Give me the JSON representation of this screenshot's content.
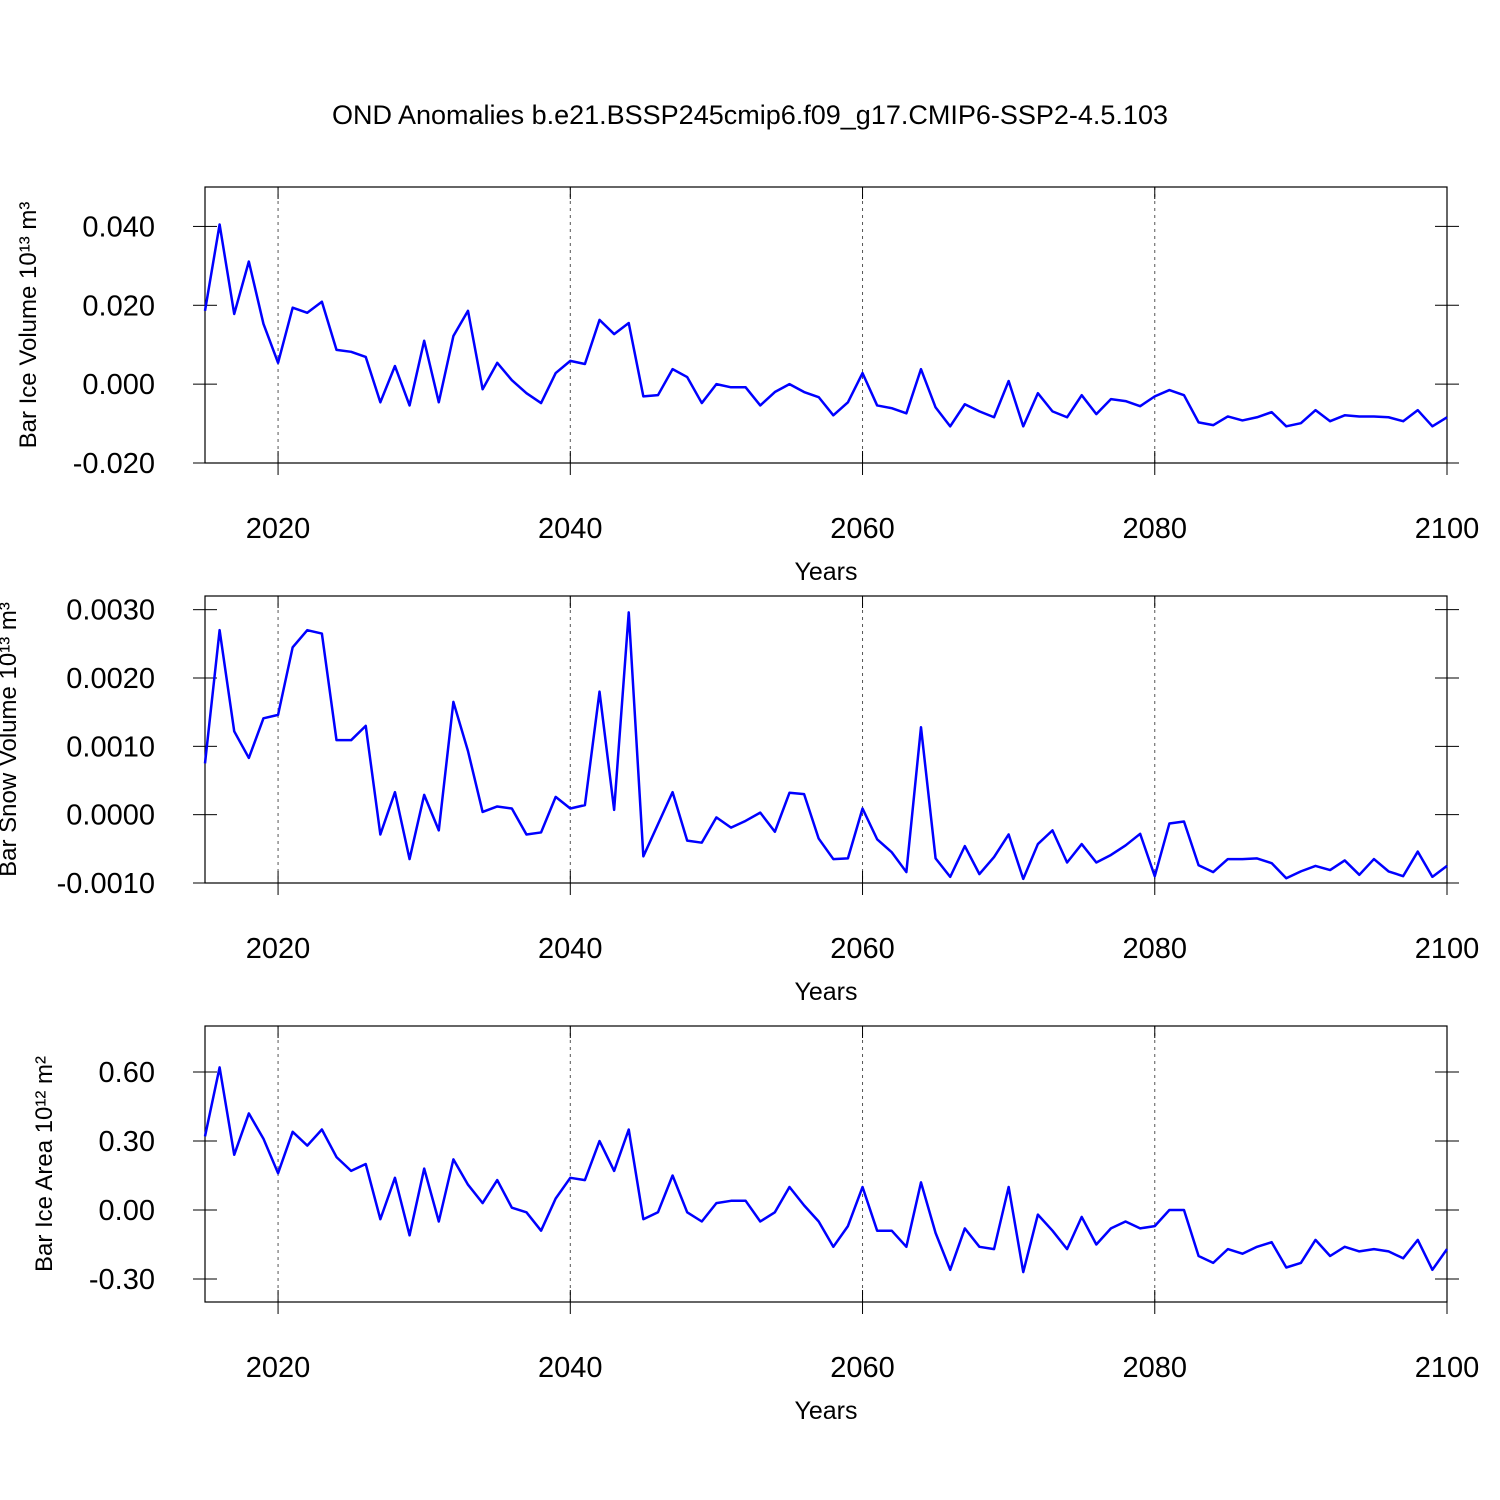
{
  "title": "OND Anomalies b.e21.BSSP245cmip6.f09_g17.CMIP6-SSP2-4.5.103",
  "chart_data": [
    {
      "type": "line",
      "ylabel": "Bar Ice Volume 10¹³ m³",
      "xlabel": "Years",
      "color": "#0000ff",
      "grid": true,
      "xlim": [
        2015,
        2100
      ],
      "xticks": [
        2020,
        2040,
        2060,
        2080,
        2100
      ],
      "ylim": [
        -0.02,
        0.05
      ],
      "yticks": [
        {
          "value": -0.02,
          "label": "-0.020"
        },
        {
          "value": 0,
          "label": "0.000"
        },
        {
          "value": 0.02,
          "label": "0.020"
        },
        {
          "value": 0.04,
          "label": "0.040"
        }
      ],
      "x": [
        2015,
        2016,
        2017,
        2018,
        2019,
        2020,
        2021,
        2022,
        2023,
        2024,
        2025,
        2026,
        2027,
        2028,
        2029,
        2030,
        2031,
        2032,
        2033,
        2034,
        2035,
        2036,
        2037,
        2038,
        2039,
        2040,
        2041,
        2042,
        2043,
        2044,
        2045,
        2046,
        2047,
        2048,
        2049,
        2050,
        2051,
        2052,
        2053,
        2054,
        2055,
        2056,
        2057,
        2058,
        2059,
        2060,
        2061,
        2062,
        2063,
        2064,
        2065,
        2066,
        2067,
        2068,
        2069,
        2070,
        2071,
        2072,
        2073,
        2074,
        2075,
        2076,
        2077,
        2078,
        2079,
        2080,
        2081,
        2082,
        2083,
        2084,
        2085,
        2086,
        2087,
        2088,
        2089,
        2090,
        2091,
        2092,
        2093,
        2094,
        2095,
        2096,
        2097,
        2098,
        2099,
        2100
      ],
      "values": [
        0.0186,
        0.0405,
        0.0178,
        0.0311,
        0.0153,
        0.0054,
        0.0194,
        0.0181,
        0.0209,
        0.0087,
        0.0082,
        0.0069,
        -0.0046,
        0.0046,
        -0.0054,
        0.011,
        -0.0046,
        0.0122,
        0.0186,
        -0.0013,
        0.0054,
        0.001,
        -0.0023,
        -0.0048,
        0.0028,
        0.0059,
        0.0051,
        0.0163,
        0.0127,
        0.0155,
        -0.0031,
        -0.0028,
        0.0038,
        0.0018,
        -0.0048,
        0.0,
        -0.0008,
        -0.0008,
        -0.0054,
        -0.002,
        0.0,
        -0.002,
        -0.0033,
        -0.0079,
        -0.0046,
        0.0028,
        -0.0054,
        -0.0061,
        -0.0074,
        0.0038,
        -0.0059,
        -0.0107,
        -0.0051,
        -0.0069,
        -0.0084,
        0.0008,
        -0.0107,
        -0.0023,
        -0.0069,
        -0.0084,
        -0.0028,
        -0.0076,
        -0.0038,
        -0.0043,
        -0.0056,
        -0.0031,
        -0.0015,
        -0.0028,
        -0.0097,
        -0.0104,
        -0.0082,
        -0.0092,
        -0.0084,
        -0.0071,
        -0.0107,
        -0.0099,
        -0.0066,
        -0.0094,
        -0.0079,
        -0.0082,
        -0.0082,
        -0.0084,
        -0.0094,
        -0.0066,
        -0.0107,
        -0.0084
      ]
    },
    {
      "type": "line",
      "ylabel": "Bar Snow Volume 10¹³ m³",
      "xlabel": "Years",
      "color": "#0000ff",
      "grid": true,
      "xlim": [
        2015,
        2100
      ],
      "xticks": [
        2020,
        2040,
        2060,
        2080,
        2100
      ],
      "ylim": [
        -0.001,
        0.0032
      ],
      "yticks": [
        {
          "value": -0.001,
          "label": "-0.0010"
        },
        {
          "value": 0,
          "label": "0.0000"
        },
        {
          "value": 0.001,
          "label": "0.0010"
        },
        {
          "value": 0.002,
          "label": "0.0020"
        },
        {
          "value": 0.003,
          "label": "0.0030"
        }
      ],
      "x": [
        2015,
        2016,
        2017,
        2018,
        2019,
        2020,
        2021,
        2022,
        2023,
        2024,
        2025,
        2026,
        2027,
        2028,
        2029,
        2030,
        2031,
        2032,
        2033,
        2034,
        2035,
        2036,
        2037,
        2038,
        2039,
        2040,
        2041,
        2042,
        2043,
        2044,
        2045,
        2046,
        2047,
        2048,
        2049,
        2050,
        2051,
        2052,
        2053,
        2054,
        2055,
        2056,
        2057,
        2058,
        2059,
        2060,
        2061,
        2062,
        2063,
        2064,
        2065,
        2066,
        2067,
        2068,
        2069,
        2070,
        2071,
        2072,
        2073,
        2074,
        2075,
        2076,
        2077,
        2078,
        2079,
        2080,
        2081,
        2082,
        2083,
        2084,
        2085,
        2086,
        2087,
        2088,
        2089,
        2090,
        2091,
        2092,
        2093,
        2094,
        2095,
        2096,
        2097,
        2098,
        2099,
        2100
      ],
      "values": [
        0.00075,
        0.0027,
        0.00122,
        0.00083,
        0.00141,
        0.00146,
        0.00245,
        0.0027,
        0.00265,
        0.00109,
        0.00109,
        0.0013,
        -0.00029,
        0.00033,
        -0.00065,
        0.00029,
        -0.00023,
        0.00165,
        0.00093,
        4e-05,
        0.00012,
        9e-05,
        -0.00029,
        -0.00026,
        0.00026,
        9e-05,
        0.00014,
        0.0018,
        7e-05,
        0.00296,
        -0.00061,
        -0.00014,
        0.00033,
        -0.00038,
        -0.00041,
        -4e-05,
        -0.00019,
        -9e-05,
        3e-05,
        -0.00025,
        0.00032,
        0.0003,
        -0.00035,
        -0.00065,
        -0.00064,
        9e-05,
        -0.00036,
        -0.00055,
        -0.00084,
        0.00128,
        -0.00064,
        -0.00091,
        -0.00046,
        -0.00087,
        -0.00062,
        -0.00029,
        -0.00094,
        -0.00043,
        -0.00023,
        -0.0007,
        -0.00043,
        -0.0007,
        -0.00059,
        -0.00045,
        -0.00028,
        -0.0009,
        -0.00013,
        -0.0001,
        -0.00074,
        -0.00084,
        -0.00065,
        -0.00065,
        -0.00064,
        -0.00071,
        -0.00093,
        -0.00083,
        -0.00075,
        -0.00081,
        -0.00067,
        -0.00088,
        -0.00065,
        -0.00083,
        -0.0009,
        -0.00054,
        -0.00091,
        -0.00075
      ]
    },
    {
      "type": "line",
      "ylabel": "Bar Ice Area 10¹² m²",
      "xlabel": "Years",
      "color": "#0000ff",
      "grid": true,
      "xlim": [
        2015,
        2100
      ],
      "xticks": [
        2020,
        2040,
        2060,
        2080,
        2100
      ],
      "ylim": [
        -0.4,
        0.8
      ],
      "yticks": [
        {
          "value": -0.3,
          "label": "-0.30"
        },
        {
          "value": 0,
          "label": "0.00"
        },
        {
          "value": 0.3,
          "label": "0.30"
        },
        {
          "value": 0.6,
          "label": "0.60"
        }
      ],
      "x": [
        2015,
        2016,
        2017,
        2018,
        2019,
        2020,
        2021,
        2022,
        2023,
        2024,
        2025,
        2026,
        2027,
        2028,
        2029,
        2030,
        2031,
        2032,
        2033,
        2034,
        2035,
        2036,
        2037,
        2038,
        2039,
        2040,
        2041,
        2042,
        2043,
        2044,
        2045,
        2046,
        2047,
        2048,
        2049,
        2050,
        2051,
        2052,
        2053,
        2054,
        2055,
        2056,
        2057,
        2058,
        2059,
        2060,
        2061,
        2062,
        2063,
        2064,
        2065,
        2066,
        2067,
        2068,
        2069,
        2070,
        2071,
        2072,
        2073,
        2074,
        2075,
        2076,
        2077,
        2078,
        2079,
        2080,
        2081,
        2082,
        2083,
        2084,
        2085,
        2086,
        2087,
        2088,
        2089,
        2090,
        2091,
        2092,
        2093,
        2094,
        2095,
        2096,
        2097,
        2098,
        2099,
        2100
      ],
      "values": [
        0.32,
        0.62,
        0.24,
        0.42,
        0.31,
        0.16,
        0.34,
        0.28,
        0.35,
        0.23,
        0.17,
        0.2,
        -0.04,
        0.14,
        -0.11,
        0.18,
        -0.05,
        0.22,
        0.11,
        0.03,
        0.13,
        0.01,
        -0.01,
        -0.09,
        0.05,
        0.14,
        0.13,
        0.3,
        0.17,
        0.35,
        -0.04,
        -0.01,
        0.15,
        -0.01,
        -0.05,
        0.03,
        0.04,
        0.04,
        -0.05,
        -0.01,
        0.1,
        0.02,
        -0.05,
        -0.16,
        -0.07,
        0.1,
        -0.09,
        -0.09,
        -0.16,
        0.12,
        -0.1,
        -0.26,
        -0.08,
        -0.16,
        -0.17,
        0.1,
        -0.27,
        -0.02,
        -0.09,
        -0.17,
        -0.03,
        -0.15,
        -0.08,
        -0.05,
        -0.08,
        -0.07,
        0.0,
        0.0,
        -0.2,
        -0.23,
        -0.17,
        -0.19,
        -0.16,
        -0.14,
        -0.25,
        -0.23,
        -0.13,
        -0.2,
        -0.16,
        -0.18,
        -0.17,
        -0.18,
        -0.21,
        -0.13,
        -0.26,
        -0.17
      ]
    }
  ]
}
